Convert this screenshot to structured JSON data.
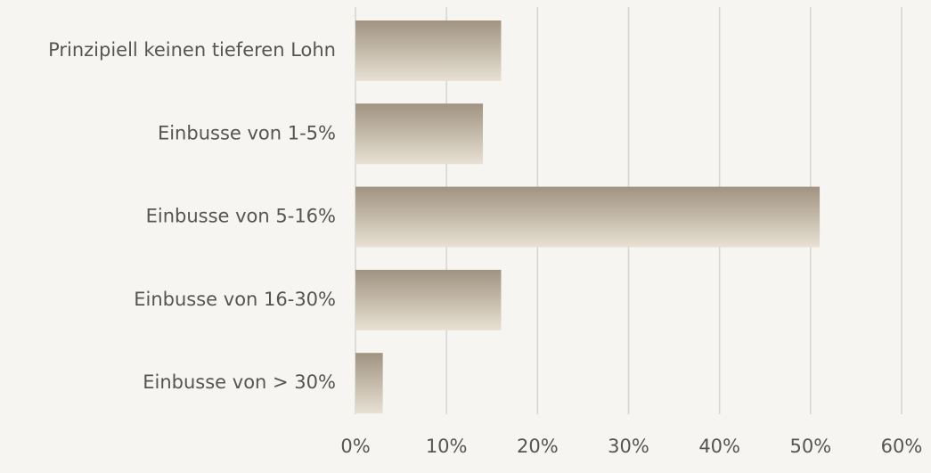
{
  "chart_data": {
    "type": "barh",
    "categories": [
      "Prinzipiell keinen tieferen Lohn",
      "Einbusse von 1-5%",
      "Einbusse von 5-16%",
      "Einbusse von 16-30%",
      "Einbusse von > 30%"
    ],
    "values": [
      16,
      14,
      51,
      16,
      3
    ],
    "color": "#a89a87",
    "xlim": [
      0,
      60
    ],
    "xticks": [
      {
        "value": 0,
        "label": "0%"
      },
      {
        "value": 10,
        "label": "10%"
      },
      {
        "value": 20,
        "label": "20%"
      },
      {
        "value": 30,
        "label": "30%"
      },
      {
        "value": 40,
        "label": "40%"
      },
      {
        "value": 50,
        "label": "50%"
      },
      {
        "value": 60,
        "label": "60%"
      }
    ],
    "grid": true
  }
}
